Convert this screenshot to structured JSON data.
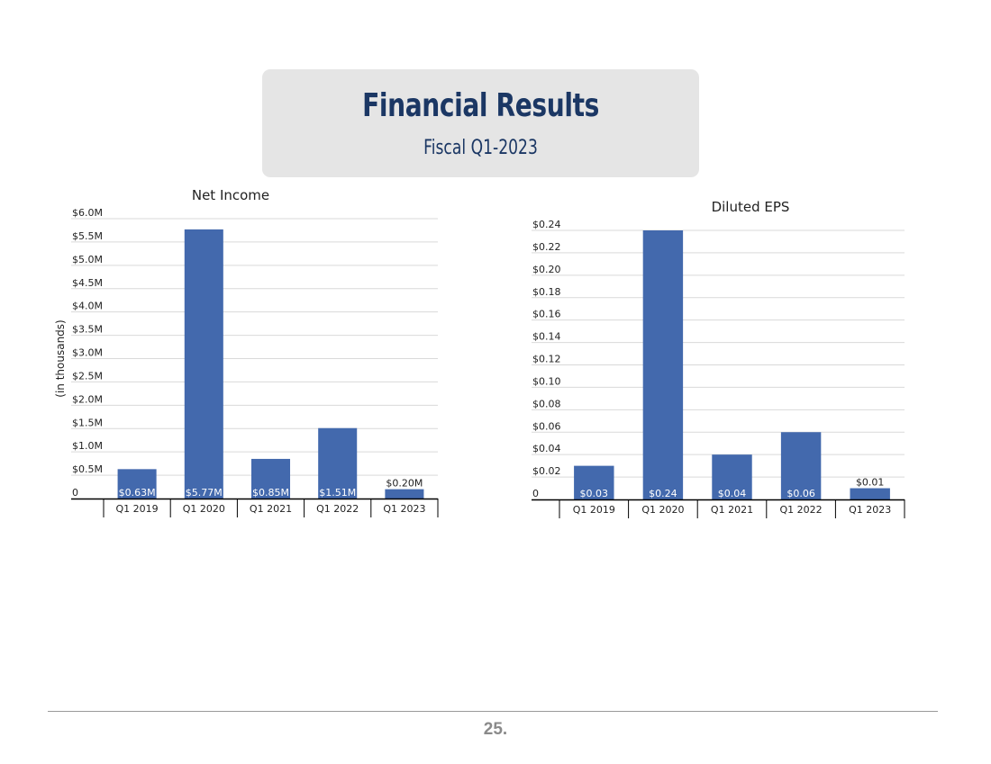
{
  "header": {
    "title": "Financial Results",
    "subtitle": "Fiscal Q1-2023"
  },
  "footer": {
    "page_number": "25."
  },
  "colors": {
    "bar": "#4369ad",
    "title": "#1b3764",
    "grid": "#d9d9d9",
    "axis": "#000000"
  },
  "chart_data": [
    {
      "type": "bar",
      "title": "Net Income",
      "ylabel": "(in thousands)",
      "categories": [
        "Q1 2019",
        "Q1 2020",
        "Q1 2021",
        "Q1 2022",
        "Q1 2023"
      ],
      "values": [
        0.63,
        5.77,
        0.85,
        1.51,
        0.2
      ],
      "data_labels": [
        "$0.63M",
        "$5.77M",
        "$0.85M",
        "$1.51M",
        "$0.20M"
      ],
      "ylim": [
        0,
        6.0
      ],
      "yticks": [
        0,
        0.5,
        1.0,
        1.5,
        2.0,
        2.5,
        3.0,
        3.5,
        4.0,
        4.5,
        5.0,
        5.5,
        6.0
      ],
      "ytick_labels": [
        "0",
        "$0.5M",
        "$1.0M",
        "$1.5M",
        "$2.0M",
        "$2.5M",
        "$3.0M",
        "$3.5M",
        "$4.0M",
        "$4.5M",
        "$5.0M",
        "$5.5M",
        "$6.0M"
      ],
      "grid": true,
      "legend": "none"
    },
    {
      "type": "bar",
      "title": "Diluted EPS",
      "ylabel": "",
      "categories": [
        "Q1 2019",
        "Q1 2020",
        "Q1 2021",
        "Q1 2022",
        "Q1 2023"
      ],
      "values": [
        0.03,
        0.24,
        0.04,
        0.06,
        0.01
      ],
      "data_labels": [
        "$0.03",
        "$0.24",
        "$0.04",
        "$0.06",
        "$0.01"
      ],
      "ylim": [
        0,
        0.24
      ],
      "yticks": [
        0,
        0.02,
        0.04,
        0.06,
        0.08,
        0.1,
        0.12,
        0.14,
        0.16,
        0.18,
        0.2,
        0.22,
        0.24
      ],
      "ytick_labels": [
        "0",
        "$0.02",
        "$0.04",
        "$0.06",
        "$0.08",
        "$0.10",
        "$0.12",
        "$0.14",
        "$0.16",
        "$0.18",
        "$0.20",
        "$0.22",
        "$0.24"
      ],
      "grid": true,
      "legend": "none"
    }
  ]
}
